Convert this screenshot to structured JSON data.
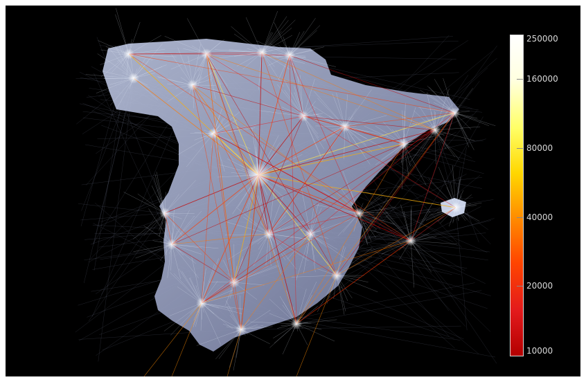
{
  "colorbar": {
    "scale": "log",
    "min": 10000,
    "max": 250000,
    "colors": [
      "#b30000",
      "#e31a1c",
      "#ff4500",
      "#ff8c00",
      "#ffd700",
      "#ffff66",
      "#ffffe0",
      "#ffffff"
    ],
    "ticks": [
      "250000",
      "160000",
      "80000",
      "40000",
      "20000",
      "10000"
    ],
    "tick_values": [
      250000,
      160000,
      80000,
      40000,
      20000,
      10000
    ]
  },
  "map": {
    "background": "#000000",
    "land_color": "#9aa3c2",
    "mesh_color": "#e6f2ff"
  }
}
